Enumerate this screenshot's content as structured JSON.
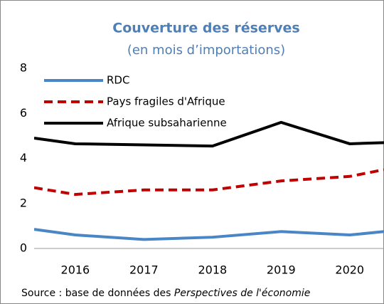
{
  "chart_data": {
    "type": "line",
    "title": "Couverture des réserves",
    "subtitle": "(en mois d’importations)",
    "x": [
      2015.4,
      2016,
      2017,
      2018,
      2019,
      2020,
      2020.5
    ],
    "xlim": [
      2015.4,
      2020.5
    ],
    "xticks": [
      2016,
      2017,
      2018,
      2019,
      2020
    ],
    "ylim": [
      0,
      8
    ],
    "yticks": [
      0,
      2,
      4,
      6,
      8
    ],
    "series": [
      {
        "name": "RDC",
        "color": "#4a86c5",
        "dash": false,
        "values": [
          0.85,
          0.6,
          0.4,
          0.5,
          0.75,
          0.6,
          0.75
        ]
      },
      {
        "name": "Pays fragiles d'Afrique",
        "color": "#c00000",
        "dash": true,
        "values": [
          2.7,
          2.4,
          2.6,
          2.6,
          3.0,
          3.2,
          3.5
        ]
      },
      {
        "name": "Afrique subsaharienne",
        "color": "#000000",
        "dash": false,
        "values": [
          4.9,
          4.65,
          4.6,
          4.55,
          5.6,
          4.65,
          4.7
        ]
      }
    ],
    "source": "Source : base de données des ",
    "source_italic": "Perspectives de l'économie"
  }
}
